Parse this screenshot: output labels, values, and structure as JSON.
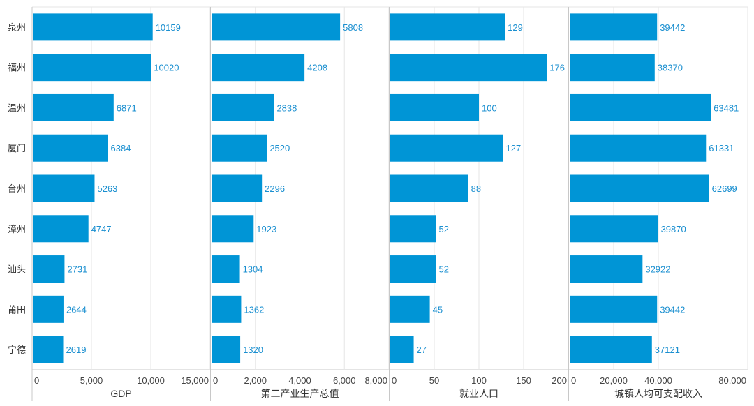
{
  "colors": {
    "bar": "#0095d6",
    "value_label": "#1a8fd0",
    "grid": "#e6e6e6",
    "divider": "#c8c8c8"
  },
  "chart_data": {
    "type": "bar",
    "orientation": "horizontal",
    "categories": [
      "泉州",
      "福州",
      "温州",
      "厦门",
      "台州",
      "漳州",
      "汕头",
      "莆田",
      "宁德"
    ],
    "grid": true,
    "data_labels": true,
    "series": [
      {
        "name": "GDP",
        "values": [
          10159,
          10020,
          6871,
          6384,
          5263,
          4747,
          2731,
          2644,
          2619
        ],
        "xlim": [
          0,
          15000
        ],
        "ticks": [
          0,
          5000,
          10000,
          15000
        ],
        "tick_labels": [
          "0",
          "5,000",
          "10,000",
          "15,000"
        ]
      },
      {
        "name": "第二产业生产总值",
        "values": [
          5808,
          4208,
          2838,
          2520,
          2296,
          1923,
          1304,
          1362,
          1320
        ],
        "xlim": [
          0,
          8000
        ],
        "ticks": [
          0,
          2000,
          4000,
          6000,
          8000
        ],
        "tick_labels": [
          "0",
          "2,000",
          "4,000",
          "6,000",
          "8,000"
        ]
      },
      {
        "name": "就业人口",
        "values": [
          129,
          176,
          100,
          127,
          88,
          52,
          52,
          45,
          27
        ],
        "xlim": [
          0,
          200
        ],
        "ticks": [
          0,
          50,
          100,
          150,
          200
        ],
        "tick_labels": [
          "0",
          "50",
          "100",
          "150",
          "200"
        ]
      },
      {
        "name": "城镇人均可支配收入",
        "values": [
          39442,
          38370,
          63481,
          61331,
          62699,
          39870,
          32922,
          39442,
          37121
        ],
        "xlim": [
          0,
          80000
        ],
        "ticks": [
          0,
          20000,
          40000,
          80000
        ],
        "tick_labels": [
          "0",
          "20,000",
          "40,000",
          "80,000"
        ]
      }
    ]
  }
}
